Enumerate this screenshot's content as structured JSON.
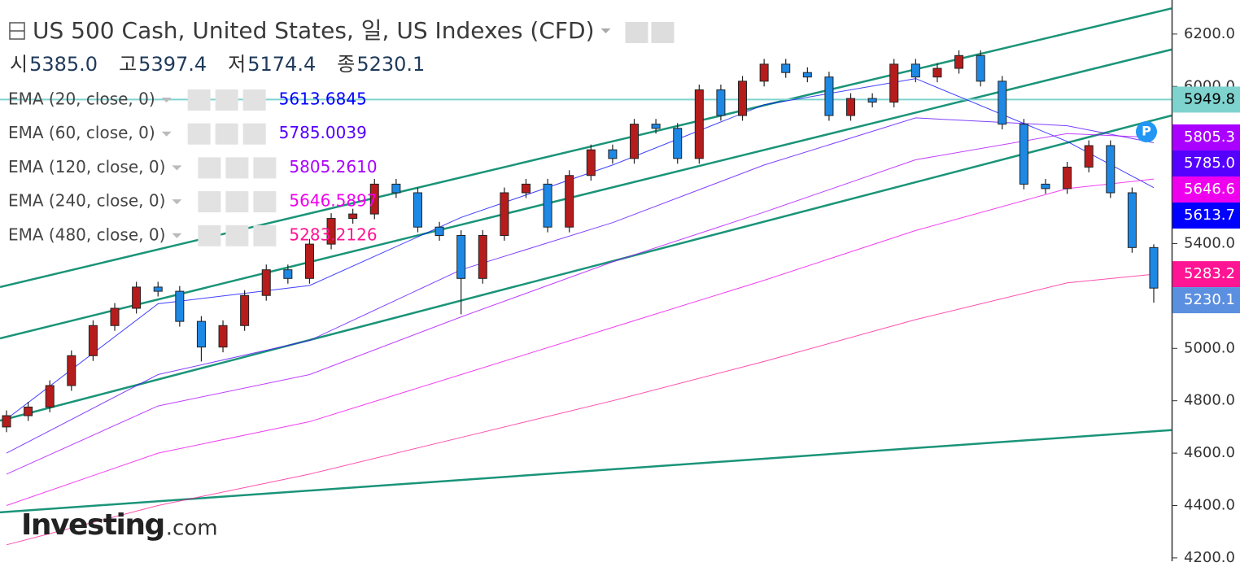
{
  "chart_data": {
    "type": "candlestick",
    "title": "US 500 Cash, United States, 일, US Indexes (CFD)",
    "ohlc": [
      {
        "label": "시",
        "text": "5385.0"
      },
      {
        "label": "고",
        "text": "5397.4"
      },
      {
        "label": "저",
        "text": "5174.4"
      },
      {
        "label": "종",
        "text": "5230.1"
      }
    ],
    "up_color": "#b71c1c",
    "down_color": "#1e88e5",
    "open": [
      4700,
      4743,
      4776,
      4858,
      4972,
      5087,
      5153,
      5234,
      5218,
      5103,
      5005,
      5087,
      5202,
      5300,
      5267,
      5398,
      5496,
      5513,
      5627,
      5594,
      5463,
      5431,
      5267,
      5431,
      5594,
      5627,
      5463,
      5660,
      5758,
      5725,
      5856,
      5840,
      5725,
      5987,
      5889,
      6020,
      6085,
      6053,
      6036,
      5889,
      5954,
      5940,
      6085,
      6036,
      6069,
      6118,
      6020,
      5856,
      5627,
      5610,
      5692,
      5774,
      5594,
      5385.0
    ],
    "high": [
      4763,
      4796,
      4878,
      4992,
      5107,
      5173,
      5254,
      5254,
      5238,
      5123,
      5107,
      5222,
      5320,
      5320,
      5418,
      5516,
      5533,
      5647,
      5647,
      5614,
      5483,
      5451,
      5451,
      5614,
      5647,
      5647,
      5680,
      5778,
      5778,
      5876,
      5876,
      5860,
      6007,
      6007,
      6040,
      6105,
      6105,
      6073,
      6056,
      5974,
      5974,
      6105,
      6105,
      6089,
      6138,
      6138,
      6040,
      5876,
      5647,
      5712,
      5794,
      5794,
      5614,
      5397.4
    ],
    "low": [
      4680,
      4723,
      4756,
      4838,
      4952,
      5067,
      5133,
      5198,
      5083,
      4950,
      4985,
      5067,
      5182,
      5247,
      5247,
      5378,
      5476,
      5493,
      5574,
      5443,
      5411,
      5130,
      5247,
      5411,
      5574,
      5443,
      5443,
      5640,
      5705,
      5705,
      5820,
      5705,
      5705,
      5869,
      5869,
      6000,
      6033,
      6016,
      5869,
      5869,
      5920,
      5920,
      6016,
      6016,
      6049,
      6000,
      5836,
      5607,
      5590,
      5590,
      5672,
      5574,
      5365,
      5174.4
    ],
    "close": [
      4743,
      4776,
      4858,
      4972,
      5087,
      5153,
      5234,
      5218,
      5103,
      5005,
      5087,
      5202,
      5300,
      5267,
      5398,
      5496,
      5513,
      5627,
      5594,
      5463,
      5431,
      5267,
      5431,
      5594,
      5627,
      5463,
      5660,
      5758,
      5725,
      5856,
      5840,
      5725,
      5987,
      5889,
      6020,
      6085,
      6053,
      6036,
      5889,
      5954,
      5940,
      6085,
      6036,
      6069,
      6118,
      6020,
      5856,
      5627,
      5610,
      5692,
      5774,
      5594,
      5385,
      5230.1
    ],
    "last_label": "5230.1",
    "last_color": "#5b8fe0",
    "ylim": [
      4150,
      6330
    ],
    "yticks": [
      {
        "value": 4200,
        "label": "4200.0"
      },
      {
        "value": 4400,
        "label": "4400.0"
      },
      {
        "value": 4600,
        "label": "4600.0"
      },
      {
        "value": 4800,
        "label": "4800.0"
      },
      {
        "value": 5000,
        "label": "5000.0"
      },
      {
        "value": 5200,
        "label": "5200.0"
      },
      {
        "value": 5400,
        "label": "5400.0"
      },
      {
        "value": 5600,
        "label": "5600.0"
      },
      {
        "value": 5800,
        "label": "5800.0"
      },
      {
        "value": 6000,
        "label": "6000.0"
      },
      {
        "value": 6200,
        "label": "6200.0"
      }
    ],
    "ema": [
      {
        "name": "EMA (20, close, 0)",
        "color": "#0000ff",
        "x": [
          0,
          7,
          14,
          21,
          28,
          35,
          42,
          49
        ],
        "values": [
          4730,
          5170,
          5240,
          5500,
          5700,
          5930,
          6030,
          5790
        ],
        "last": {
          "value": 5613.6845,
          "label": "5613.6845"
        },
        "axis_label": "5613.7"
      },
      {
        "name": "EMA (60, close, 0)",
        "color": "#5500ff",
        "x": [
          0,
          7,
          14,
          21,
          28,
          35,
          42,
          49
        ],
        "values": [
          4600,
          4900,
          5030,
          5300,
          5480,
          5700,
          5880,
          5850
        ],
        "last": {
          "value": 5785.0039,
          "label": "5785.0039"
        },
        "axis_label": "5785.0"
      },
      {
        "name": "EMA (120, close, 0)",
        "color": "#aa00ff",
        "x": [
          0,
          7,
          14,
          21,
          28,
          35,
          42,
          49
        ],
        "values": [
          4520,
          4780,
          4900,
          5120,
          5330,
          5520,
          5720,
          5820
        ],
        "last": {
          "value": 5805.261,
          "label": "5805.2610"
        },
        "axis_label": "5805.3"
      },
      {
        "name": "EMA (240, close, 0)",
        "color": "#ee00ee",
        "x": [
          0,
          7,
          14,
          21,
          28,
          35,
          42,
          49
        ],
        "values": [
          4400,
          4600,
          4720,
          4900,
          5080,
          5260,
          5450,
          5610
        ],
        "last": {
          "value": 5646.5897,
          "label": "5646.5897"
        },
        "axis_label": "5646.6"
      },
      {
        "name": "EMA (480, close, 0)",
        "color": "#ff1493",
        "x": [
          0,
          7,
          14,
          21,
          28,
          35,
          42,
          49
        ],
        "values": [
          4250,
          4400,
          4520,
          4660,
          4800,
          4950,
          5110,
          5250
        ],
        "last": {
          "value": 5283.2126,
          "label": "5283.2126"
        },
        "axis_label": "5283.2"
      }
    ],
    "trend_color": "#1a9479",
    "trend_lines": [
      {
        "start": 5234,
        "end": 6298
      },
      {
        "start": 5038,
        "end": 6141
      },
      {
        "start": 4724,
        "end": 5889
      },
      {
        "start": 4374,
        "end": 4688
      }
    ],
    "horizontal_line": {
      "value": 5949.8,
      "color": "#7fd3cf"
    },
    "logo": {
      "brand": "Investing",
      "suffix": ".com"
    }
  }
}
